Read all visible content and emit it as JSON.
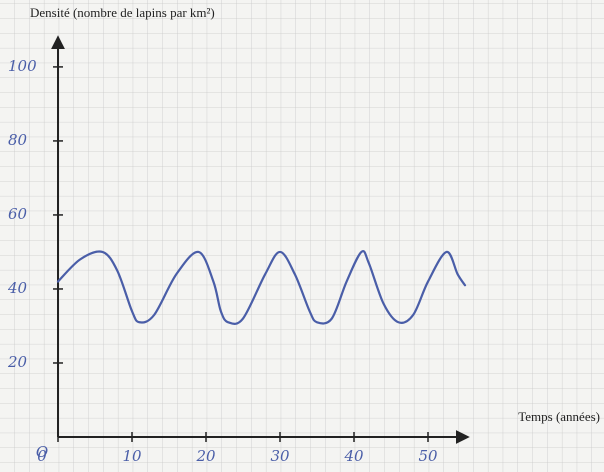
{
  "chart_data": {
    "type": "line",
    "title": "Densité (nombre de lapins par km²)",
    "x_label": "Temps (années)",
    "x": [
      0,
      3,
      6,
      8,
      10,
      11,
      13,
      16,
      19,
      21,
      22,
      23,
      25,
      28,
      30,
      32,
      34,
      35,
      37,
      39,
      41,
      42,
      44,
      46,
      48,
      50,
      52.5,
      54,
      55
    ],
    "series": [
      {
        "color": "#4a5ea8",
        "values": [
          42,
          48,
          50,
          45,
          34,
          31,
          33,
          44,
          50,
          42,
          34,
          31,
          32,
          44,
          50,
          44,
          34,
          31,
          32,
          42,
          50,
          47,
          36,
          31,
          33,
          42,
          50,
          44,
          41
        ]
      }
    ],
    "xlim": [
      0,
      55
    ],
    "ylim": [
      0,
      107
    ],
    "xticks": [
      0,
      10,
      20,
      30,
      40,
      50
    ],
    "yticks": [
      20,
      40,
      60,
      80,
      100
    ]
  }
}
